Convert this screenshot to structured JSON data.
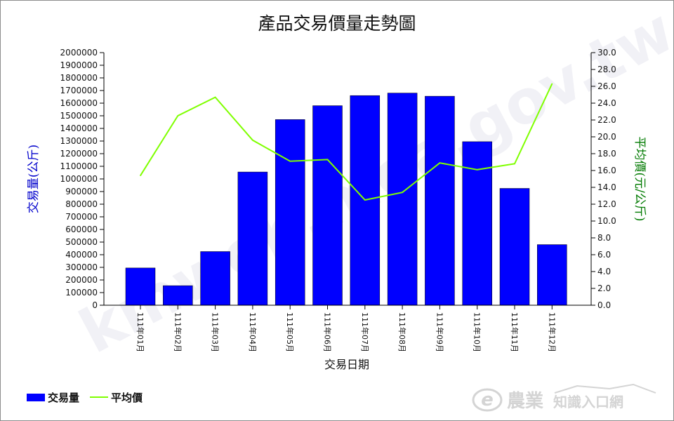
{
  "chart_data": {
    "type": "bar",
    "title": "產品交易價量走勢圖",
    "xlabel": "交易日期",
    "categories": [
      "111年01月",
      "111年02月",
      "111年03月",
      "111年04月",
      "111年05月",
      "111年06月",
      "111年07月",
      "111年08月",
      "111年09月",
      "111年10月",
      "111年11月",
      "111年12月"
    ],
    "series": [
      {
        "name": "交易量",
        "type": "bar",
        "axis": "left",
        "color": "#0000ff",
        "values": [
          295000,
          155000,
          425000,
          1055000,
          1470000,
          1580000,
          1660000,
          1680000,
          1655000,
          1295000,
          925000,
          480000
        ]
      },
      {
        "name": "平均價",
        "type": "line",
        "axis": "right",
        "color": "#7fff00",
        "values": [
          15.4,
          22.5,
          24.7,
          19.6,
          17.1,
          17.3,
          12.5,
          13.4,
          16.9,
          16.1,
          16.8,
          26.3
        ]
      }
    ],
    "y_left": {
      "label": "交易量(公斤)",
      "color": "#0000cc",
      "ylim": [
        0,
        2000000
      ],
      "ticks": [
        "0",
        "100000",
        "200000",
        "300000",
        "400000",
        "500000",
        "600000",
        "700000",
        "800000",
        "900000",
        "1000000",
        "1100000",
        "1200000",
        "1300000",
        "1400000",
        "1500000",
        "1600000",
        "1700000",
        "1800000",
        "1900000",
        "2000000"
      ]
    },
    "y_right": {
      "label": "平均價(元/公斤)",
      "color": "#007a00",
      "ylim": [
        0,
        30
      ],
      "ticks": [
        "0.0",
        "2.0",
        "4.0",
        "6.0",
        "8.0",
        "10.0",
        "12.0",
        "14.0",
        "16.0",
        "18.0",
        "20.0",
        "22.0",
        "24.0",
        "26.0",
        "28.0",
        "30.0"
      ]
    },
    "grid": false,
    "legend": {
      "position": "bottom-left",
      "items": [
        {
          "label": "交易量",
          "color": "#0000ff",
          "kind": "box"
        },
        {
          "label": "平均價",
          "color": "#7fff00",
          "kind": "line"
        }
      ]
    }
  },
  "watermark": "kmweb.moa.gov.tw",
  "logo": {
    "main": "農業",
    "sub": "知識入口網"
  }
}
